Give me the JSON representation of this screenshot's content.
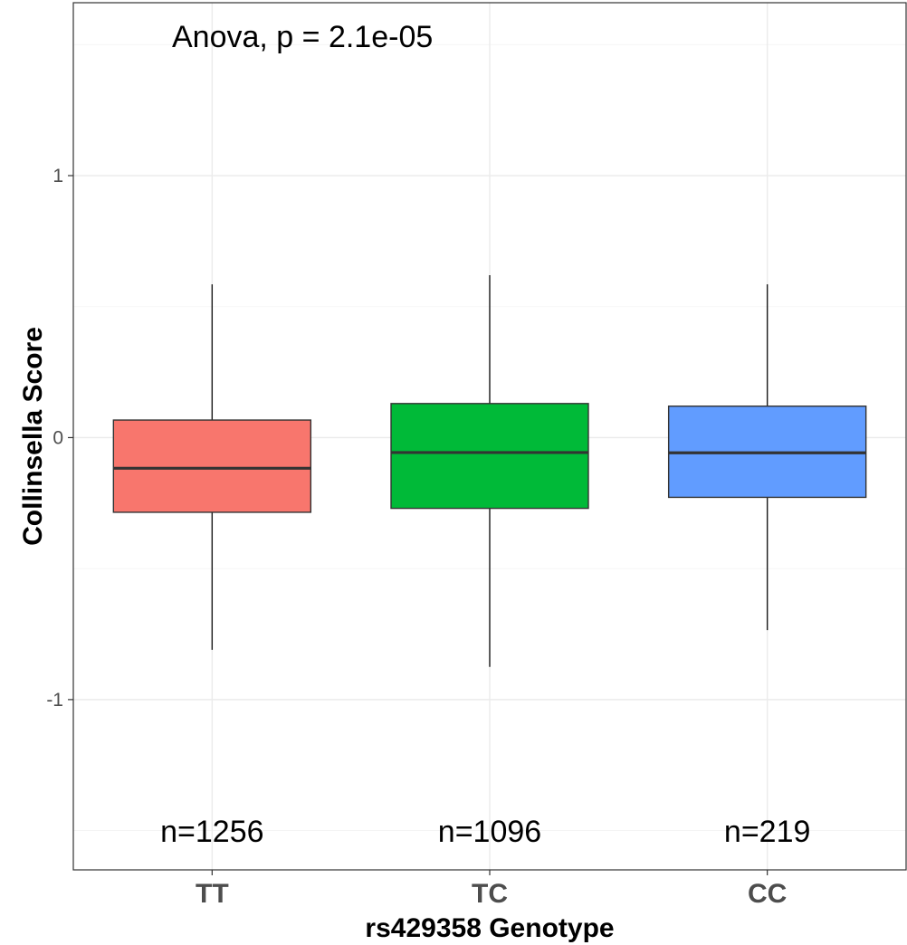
{
  "chart_data": {
    "type": "boxplot",
    "xlabel": "rs429358 Genotype",
    "ylabel": "Collinsella Score",
    "ylim": [
      -1.65,
      1.66
    ],
    "y_ticks": [
      -1,
      0,
      1
    ],
    "grid": true,
    "legend": "none",
    "annotation": "Anova, p = 2.1e-05",
    "categories": [
      "TT",
      "TC",
      "CC"
    ],
    "boxes": [
      {
        "category": "TT",
        "color": "#F8766D",
        "whisker_low": -0.81,
        "q1": -0.285,
        "median": -0.117,
        "q3": 0.067,
        "whisker_high": 0.585,
        "count_label": "n=1256"
      },
      {
        "category": "TC",
        "color": "#00BA38",
        "whisker_low": -0.875,
        "q1": -0.27,
        "median": -0.057,
        "q3": 0.13,
        "whisker_high": 0.62,
        "count_label": "n=1096"
      },
      {
        "category": "CC",
        "color": "#619CFF",
        "whisker_low": -0.735,
        "q1": -0.228,
        "median": -0.058,
        "q3": 0.12,
        "whisker_high": 0.585,
        "count_label": "n=219"
      }
    ]
  }
}
